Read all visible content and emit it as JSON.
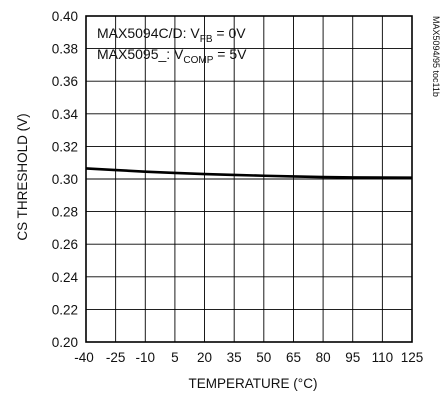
{
  "chart_data": {
    "type": "line",
    "xlabel": "TEMPERATURE (°C)",
    "ylabel": "CS THRESHOLD (V)",
    "xlim": [
      -40,
      125
    ],
    "ylim": [
      0.2,
      0.4
    ],
    "x_ticks": [
      "-40",
      "-25",
      "-10",
      "5",
      "20",
      "35",
      "50",
      "65",
      "80",
      "95",
      "110",
      "125"
    ],
    "y_ticks": [
      "0.20",
      "0.22",
      "0.24",
      "0.26",
      "0.28",
      "0.30",
      "0.32",
      "0.34",
      "0.36",
      "0.38",
      "0.40"
    ],
    "grid": true,
    "series": [
      {
        "x": [
          -40,
          -25,
          -10,
          5,
          20,
          35,
          50,
          65,
          80,
          95,
          110,
          125
        ],
        "y": [
          0.3065,
          0.3055,
          0.3045,
          0.3037,
          0.303,
          0.3025,
          0.302,
          0.3016,
          0.3012,
          0.301,
          0.3009,
          0.3008
        ]
      }
    ],
    "annotations": {
      "line1": {
        "prefix": "MAX5094C/D: V",
        "sub": "FB",
        "suffix": " = 0V"
      },
      "line2": {
        "prefix": "MAX5095_: V",
        "sub": "COMP",
        "suffix": " = 5V"
      }
    },
    "figure_id": "MAX5094/95 toc11b",
    "line_color": "#000000"
  }
}
